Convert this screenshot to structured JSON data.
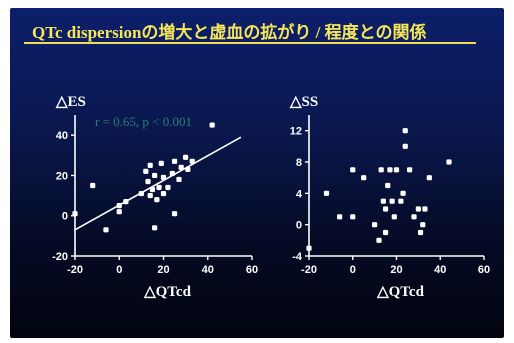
{
  "slide": {
    "title": "QTc dispersionの増大と虚血の拡がり / 程度との関係",
    "title_color": "#f6e65a",
    "background": "#0a1850"
  },
  "chart_data": [
    {
      "type": "scatter",
      "title": "",
      "xlabel": "△QTcd",
      "ylabel": "△ES",
      "xlim": [
        -20,
        60
      ],
      "ylim": [
        -20,
        50
      ],
      "xticks": [
        "-20",
        "0",
        "20",
        "40",
        "60"
      ],
      "yticks": [
        "-20",
        "0",
        "20",
        "40"
      ],
      "annotation": "r = 0.65, p < 0.001",
      "fit_line": {
        "x": [
          -20,
          55
        ],
        "y": [
          -7,
          39
        ]
      },
      "points": [
        {
          "x": -20,
          "y": 1
        },
        {
          "x": -12,
          "y": 15
        },
        {
          "x": -6,
          "y": -7
        },
        {
          "x": 0,
          "y": 2
        },
        {
          "x": 0,
          "y": 5
        },
        {
          "x": 3,
          "y": 7
        },
        {
          "x": 10,
          "y": 11
        },
        {
          "x": 12,
          "y": 22
        },
        {
          "x": 13,
          "y": 17
        },
        {
          "x": 14,
          "y": 10
        },
        {
          "x": 14,
          "y": 25
        },
        {
          "x": 15,
          "y": 13
        },
        {
          "x": 16,
          "y": 20
        },
        {
          "x": 16,
          "y": -6
        },
        {
          "x": 17,
          "y": 8
        },
        {
          "x": 18,
          "y": 14
        },
        {
          "x": 19,
          "y": 26
        },
        {
          "x": 20,
          "y": 19
        },
        {
          "x": 20,
          "y": 11
        },
        {
          "x": 22,
          "y": 14
        },
        {
          "x": 24,
          "y": 21
        },
        {
          "x": 25,
          "y": 27
        },
        {
          "x": 25,
          "y": 1
        },
        {
          "x": 27,
          "y": 18
        },
        {
          "x": 28,
          "y": 24
        },
        {
          "x": 30,
          "y": 29
        },
        {
          "x": 31,
          "y": 23
        },
        {
          "x": 33,
          "y": 27
        },
        {
          "x": 42,
          "y": 45
        }
      ]
    },
    {
      "type": "scatter",
      "title": "",
      "xlabel": "△QTcd",
      "ylabel": "△SS",
      "xlim": [
        -20,
        60
      ],
      "ylim": [
        -4,
        14
      ],
      "xticks": [
        "-20",
        "0",
        "20",
        "40",
        "60"
      ],
      "yticks": [
        "-4",
        "0",
        "4",
        "8",
        "12"
      ],
      "points": [
        {
          "x": -20,
          "y": -3
        },
        {
          "x": -12,
          "y": 4
        },
        {
          "x": -6,
          "y": 1
        },
        {
          "x": 0,
          "y": 1
        },
        {
          "x": 0,
          "y": 7
        },
        {
          "x": 5,
          "y": 6
        },
        {
          "x": 10,
          "y": 0
        },
        {
          "x": 12,
          "y": -2
        },
        {
          "x": 13,
          "y": 7
        },
        {
          "x": 14,
          "y": 3
        },
        {
          "x": 15,
          "y": 2
        },
        {
          "x": 15,
          "y": -1
        },
        {
          "x": 16,
          "y": 5
        },
        {
          "x": 17,
          "y": 7
        },
        {
          "x": 18,
          "y": 3
        },
        {
          "x": 19,
          "y": 1
        },
        {
          "x": 20,
          "y": 7
        },
        {
          "x": 22,
          "y": 3
        },
        {
          "x": 23,
          "y": 4
        },
        {
          "x": 24,
          "y": 12
        },
        {
          "x": 24,
          "y": 10
        },
        {
          "x": 26,
          "y": 7
        },
        {
          "x": 28,
          "y": 1
        },
        {
          "x": 30,
          "y": 2
        },
        {
          "x": 31,
          "y": -1
        },
        {
          "x": 32,
          "y": 0
        },
        {
          "x": 33,
          "y": 2
        },
        {
          "x": 35,
          "y": 6
        },
        {
          "x": 44,
          "y": 8
        }
      ]
    }
  ]
}
